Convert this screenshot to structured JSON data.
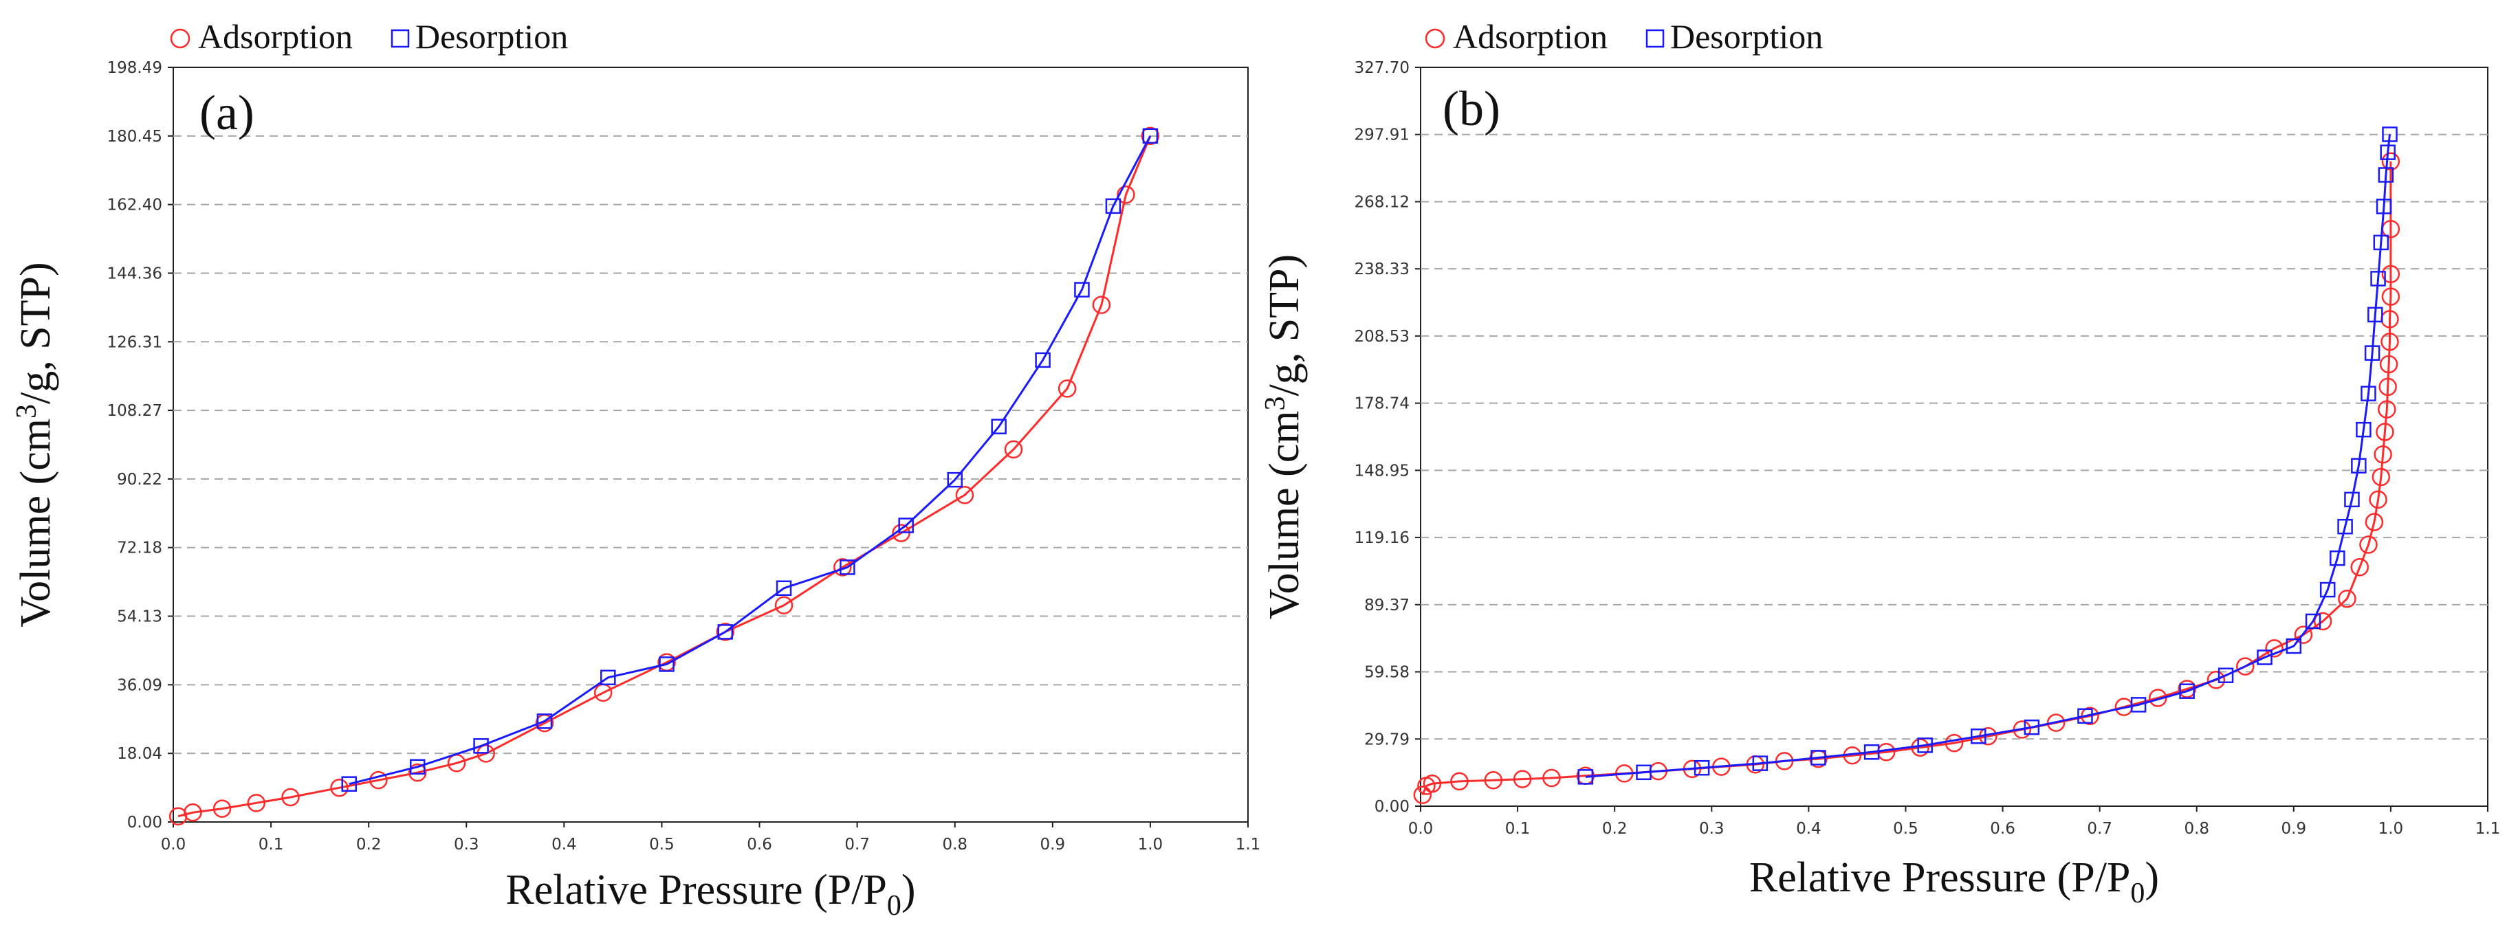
{
  "colors": {
    "adsorption": "#ff2a2a",
    "desorption": "#1a1aff",
    "axis": "#222222",
    "grid": "#a7a7a7",
    "tick_label": "#333333",
    "text": "#111111"
  },
  "chart_data": [
    {
      "type": "line",
      "panel_label": "(a)",
      "xlabel": "Relative Pressure (P/P0)",
      "xlabel_main": "Relative Pressure (P/P",
      "xlabel_sub": "0",
      "xlabel_end": ")",
      "ylabel": "Volume (cm3/g, STP)",
      "ylabel_pre": "Volume (cm",
      "ylabel_sup": "3",
      "ylabel_post": "/g, STP)",
      "legend": [
        "Adsorption",
        "Desorption"
      ],
      "xlim": [
        0,
        1.1
      ],
      "ylim": [
        0,
        198.49
      ],
      "xticks": [
        "0.0",
        "0.1",
        "0.2",
        "0.3",
        "0.4",
        "0.5",
        "0.6",
        "0.7",
        "0.8",
        "0.9",
        "1.0",
        "1.1"
      ],
      "yticks": [
        "0.00",
        "18.04",
        "36.09",
        "54.13",
        "72.18",
        "90.22",
        "108.27",
        "126.31",
        "144.36",
        "162.40",
        "180.45",
        "198.49"
      ],
      "series": [
        {
          "name": "Adsorption",
          "marker": "circle",
          "x": [
            0.005,
            0.02,
            0.05,
            0.085,
            0.12,
            0.17,
            0.21,
            0.25,
            0.29,
            0.32,
            0.38,
            0.44,
            0.505,
            0.565,
            0.625,
            0.685,
            0.745,
            0.81,
            0.86,
            0.915,
            0.95,
            0.975,
            1.0
          ],
          "y": [
            1.5,
            2.5,
            3.5,
            5.0,
            6.5,
            9.0,
            11.0,
            13.0,
            15.5,
            18.0,
            26.0,
            34.0,
            42.0,
            50.0,
            57.0,
            67.0,
            76.0,
            86.0,
            98.0,
            114.0,
            136.0,
            165.0,
            180.45
          ]
        },
        {
          "name": "Desorption",
          "marker": "square",
          "x": [
            0.18,
            0.25,
            0.315,
            0.38,
            0.445,
            0.505,
            0.565,
            0.625,
            0.69,
            0.75,
            0.8,
            0.845,
            0.89,
            0.93,
            0.962,
            1.0
          ],
          "y": [
            10.0,
            14.5,
            20.0,
            26.5,
            38.0,
            41.5,
            50.0,
            61.5,
            67.0,
            78.0,
            90.0,
            104.0,
            121.5,
            140.0,
            162.0,
            180.45
          ]
        }
      ]
    },
    {
      "type": "line",
      "panel_label": "(b)",
      "xlabel": "Relative Pressure (P/P0)",
      "xlabel_main": "Relative Pressure (P/P",
      "xlabel_sub": "0",
      "xlabel_end": ")",
      "ylabel": "Volume (cm3/g, STP)",
      "ylabel_pre": "Volume (cm",
      "ylabel_sup": "3",
      "ylabel_post": "/g, STP)",
      "legend": [
        "Adsorption",
        "Desorption"
      ],
      "xlim": [
        0,
        1.1
      ],
      "ylim": [
        0,
        327.7
      ],
      "xticks": [
        "0.0",
        "0.1",
        "0.2",
        "0.3",
        "0.4",
        "0.5",
        "0.6",
        "0.7",
        "0.8",
        "0.9",
        "1.0",
        "1.1"
      ],
      "yticks": [
        "0.00",
        "29.79",
        "59.58",
        "89.37",
        "119.16",
        "148.95",
        "178.74",
        "208.53",
        "238.33",
        "268.12",
        "297.91",
        "327.70"
      ],
      "series": [
        {
          "name": "Adsorption",
          "marker": "circle",
          "x": [
            0.002,
            0.006,
            0.012,
            0.04,
            0.075,
            0.105,
            0.135,
            0.17,
            0.21,
            0.245,
            0.28,
            0.31,
            0.345,
            0.375,
            0.41,
            0.445,
            0.48,
            0.515,
            0.55,
            0.585,
            0.62,
            0.655,
            0.69,
            0.725,
            0.76,
            0.79,
            0.82,
            0.85,
            0.88,
            0.91,
            0.93,
            0.955,
            0.968,
            0.977,
            0.983,
            0.987,
            0.99,
            0.992,
            0.994,
            0.996,
            0.997,
            0.998,
            0.999,
            0.999,
            1.0,
            1.0,
            1.0,
            1.0
          ],
          "y": [
            5.0,
            9.0,
            10.0,
            11.0,
            11.5,
            12.0,
            12.5,
            13.5,
            14.5,
            15.5,
            16.5,
            17.5,
            18.5,
            20.0,
            21.0,
            22.5,
            24.0,
            26.0,
            28.0,
            31.0,
            34.0,
            37.0,
            40.0,
            44.0,
            48.0,
            52.0,
            56.0,
            62.0,
            70.0,
            76.0,
            82.0,
            92.0,
            106.0,
            116.0,
            126.0,
            136.0,
            146.0,
            156.0,
            166.0,
            176.0,
            186.0,
            196.0,
            206.0,
            216.0,
            226.0,
            236.0,
            256.0,
            286.0
          ]
        },
        {
          "name": "Desorption",
          "marker": "square",
          "x": [
            0.17,
            0.23,
            0.29,
            0.35,
            0.41,
            0.465,
            0.52,
            0.575,
            0.63,
            0.685,
            0.74,
            0.79,
            0.83,
            0.87,
            0.9,
            0.92,
            0.935,
            0.945,
            0.953,
            0.96,
            0.967,
            0.972,
            0.977,
            0.981,
            0.984,
            0.987,
            0.99,
            0.993,
            0.995,
            0.997,
            0.999
          ],
          "y": [
            13.0,
            15.0,
            17.0,
            19.0,
            21.5,
            24.0,
            27.0,
            31.0,
            35.0,
            40.0,
            45.0,
            51.0,
            58.0,
            66.0,
            71.0,
            82.0,
            96.0,
            110.0,
            124.0,
            136.0,
            151.0,
            167.0,
            183.0,
            201.0,
            218.0,
            234.0,
            250.0,
            266.0,
            280.0,
            290.0,
            298.0
          ]
        }
      ]
    }
  ]
}
